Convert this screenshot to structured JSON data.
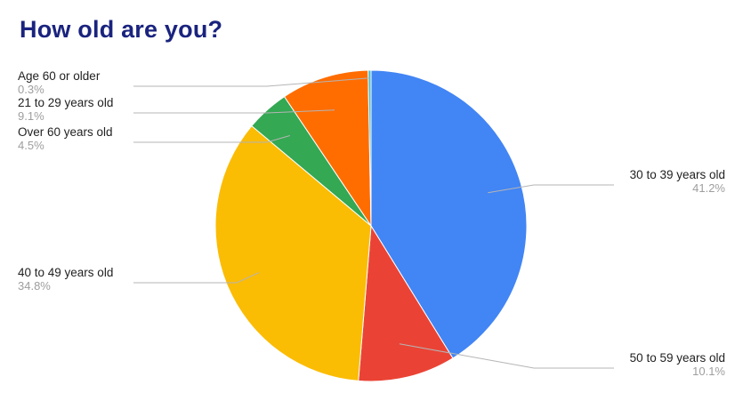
{
  "colors": {
    "title": "#1a237e",
    "background": "#ffffff"
  },
  "chart_data": {
    "type": "pie",
    "title": "How old are you?",
    "slices": [
      {
        "label": "30 to 39 years old",
        "value": 41.2,
        "value_label": "41.2%",
        "color": "#4285f4"
      },
      {
        "label": "50 to 59 years old",
        "value": 10.1,
        "value_label": "10.1%",
        "color": "#ea4335"
      },
      {
        "label": "40 to 49 years old",
        "value": 34.8,
        "value_label": "34.8%",
        "color": "#fbbc04"
      },
      {
        "label": "Over 60 years old",
        "value": 4.5,
        "value_label": "4.5%",
        "color": "#34a853"
      },
      {
        "label": "21 to 29 years old",
        "value": 9.1,
        "value_label": "9.1%",
        "color": "#ff6d01"
      },
      {
        "label": "Age 60 or older",
        "value": 0.3,
        "value_label": "0.3%",
        "color": "#46bdc6"
      }
    ],
    "start_angle": "12 o'clock",
    "direction": "clockwise",
    "legend": "none (labels with leader lines)"
  }
}
